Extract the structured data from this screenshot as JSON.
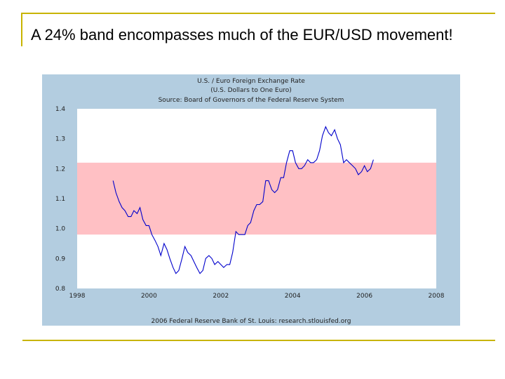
{
  "slide": {
    "title": "A 24% band encompasses much of the EUR/USD movement!"
  },
  "colors": {
    "frame_gold": "#c8b400",
    "panel_blue": "#b3cde0",
    "band_pink": "#ffc0c4",
    "line": "#0000cc"
  },
  "chart_data": {
    "type": "line",
    "title": "U.S. / Euro Foreign Exchange Rate",
    "subtitle": "(U.S. Dollars to One Euro)",
    "source": "Source: Board of Governors of the Federal Reserve System",
    "footer": "2006 Federal Reserve Bank of St. Louis: research.stlouisfed.org",
    "xlabel": "",
    "ylabel": "",
    "xlim": [
      1998,
      2008
    ],
    "ylim": [
      0.8,
      1.4
    ],
    "x_ticks": [
      "1998",
      "2000",
      "2002",
      "2004",
      "2006",
      "2008"
    ],
    "y_ticks": [
      "1.4",
      "1.3",
      "1.2",
      "1.1",
      "1.0",
      "0.9",
      "0.8"
    ],
    "band": {
      "low": 0.98,
      "high": 1.22,
      "label": "24% band"
    },
    "series": [
      {
        "name": "EUR/USD",
        "x": [
          1999.0,
          1999.08,
          1999.17,
          1999.25,
          1999.33,
          1999.42,
          1999.5,
          1999.58,
          1999.67,
          1999.75,
          1999.83,
          1999.92,
          2000.0,
          2000.08,
          2000.17,
          2000.25,
          2000.33,
          2000.42,
          2000.5,
          2000.58,
          2000.67,
          2000.75,
          2000.83,
          2000.92,
          2001.0,
          2001.08,
          2001.17,
          2001.25,
          2001.33,
          2001.42,
          2001.5,
          2001.58,
          2001.67,
          2001.75,
          2001.83,
          2001.92,
          2002.0,
          2002.08,
          2002.17,
          2002.25,
          2002.33,
          2002.42,
          2002.5,
          2002.58,
          2002.67,
          2002.75,
          2002.83,
          2002.92,
          2003.0,
          2003.08,
          2003.17,
          2003.25,
          2003.33,
          2003.42,
          2003.5,
          2003.58,
          2003.67,
          2003.75,
          2003.83,
          2003.92,
          2004.0,
          2004.08,
          2004.17,
          2004.25,
          2004.33,
          2004.42,
          2004.5,
          2004.58,
          2004.67,
          2004.75,
          2004.83,
          2004.92,
          2005.0,
          2005.08,
          2005.17,
          2005.25,
          2005.33,
          2005.42,
          2005.5,
          2005.58,
          2005.67,
          2005.75,
          2005.83,
          2005.92,
          2006.0,
          2006.08,
          2006.17,
          2006.25
        ],
        "y": [
          1.16,
          1.12,
          1.09,
          1.07,
          1.06,
          1.04,
          1.04,
          1.06,
          1.05,
          1.07,
          1.03,
          1.01,
          1.01,
          0.98,
          0.96,
          0.94,
          0.91,
          0.95,
          0.93,
          0.9,
          0.87,
          0.85,
          0.86,
          0.9,
          0.94,
          0.92,
          0.91,
          0.89,
          0.87,
          0.85,
          0.86,
          0.9,
          0.91,
          0.9,
          0.88,
          0.89,
          0.88,
          0.87,
          0.88,
          0.88,
          0.92,
          0.99,
          0.98,
          0.98,
          0.98,
          1.01,
          1.02,
          1.06,
          1.08,
          1.08,
          1.09,
          1.16,
          1.16,
          1.13,
          1.12,
          1.13,
          1.17,
          1.17,
          1.22,
          1.26,
          1.26,
          1.22,
          1.2,
          1.2,
          1.21,
          1.23,
          1.22,
          1.22,
          1.23,
          1.26,
          1.31,
          1.34,
          1.32,
          1.31,
          1.33,
          1.3,
          1.28,
          1.22,
          1.23,
          1.22,
          1.21,
          1.2,
          1.18,
          1.19,
          1.21,
          1.19,
          1.2,
          1.23
        ]
      }
    ]
  }
}
